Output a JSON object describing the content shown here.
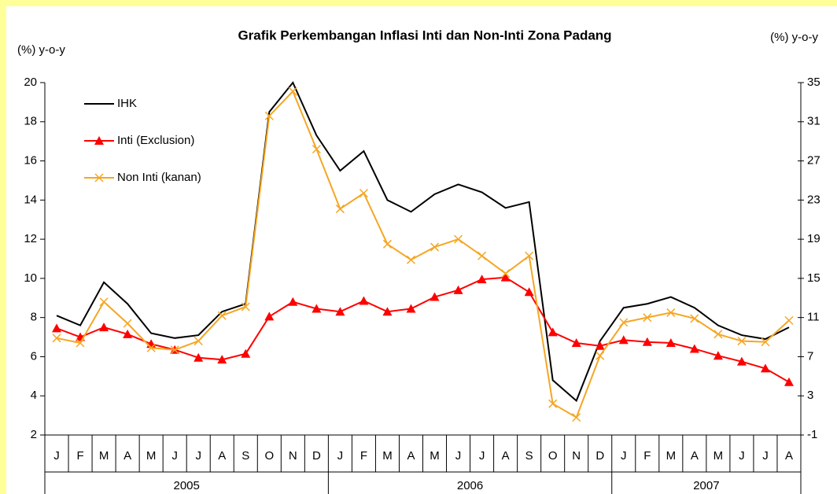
{
  "chart_data": {
    "type": "line",
    "title": "Grafik Perkembangan Inflasi Inti dan Non-Inti Zona Padang",
    "y_label": "(%) y-o-y",
    "y2_label": "(%) y-o-y",
    "x": [
      {
        "month": "J",
        "year": "2005"
      },
      {
        "month": "F",
        "year": "2005"
      },
      {
        "month": "M",
        "year": "2005"
      },
      {
        "month": "A",
        "year": "2005"
      },
      {
        "month": "M",
        "year": "2005"
      },
      {
        "month": "J",
        "year": "2005"
      },
      {
        "month": "J",
        "year": "2005"
      },
      {
        "month": "A",
        "year": "2005"
      },
      {
        "month": "S",
        "year": "2005"
      },
      {
        "month": "O",
        "year": "2005"
      },
      {
        "month": "N",
        "year": "2005"
      },
      {
        "month": "D",
        "year": "2005"
      },
      {
        "month": "J",
        "year": "2006"
      },
      {
        "month": "F",
        "year": "2006"
      },
      {
        "month": "M",
        "year": "2006"
      },
      {
        "month": "A",
        "year": "2006"
      },
      {
        "month": "M",
        "year": "2006"
      },
      {
        "month": "J",
        "year": "2006"
      },
      {
        "month": "J",
        "year": "2006"
      },
      {
        "month": "A",
        "year": "2006"
      },
      {
        "month": "S",
        "year": "2006"
      },
      {
        "month": "O",
        "year": "2006"
      },
      {
        "month": "N",
        "year": "2006"
      },
      {
        "month": "D",
        "year": "2006"
      },
      {
        "month": "J",
        "year": "2007"
      },
      {
        "month": "F",
        "year": "2007"
      },
      {
        "month": "M",
        "year": "2007"
      },
      {
        "month": "A",
        "year": "2007"
      },
      {
        "month": "M",
        "year": "2007"
      },
      {
        "month": "J",
        "year": "2007"
      },
      {
        "month": "J",
        "year": "2007"
      },
      {
        "month": "A",
        "year": "2007"
      }
    ],
    "series": [
      {
        "name": "IHK",
        "color": "#000000",
        "marker": "none",
        "values": [
          8.1,
          7.6,
          9.8,
          8.7,
          7.2,
          6.95,
          7.1,
          8.3,
          8.7,
          18.5,
          20,
          17.3,
          15.5,
          16.5,
          14,
          13.4,
          14.3,
          14.8,
          14.4,
          13.6,
          13.9,
          4.8,
          3.75,
          6.8,
          8.5,
          8.7,
          9.05,
          8.5,
          7.6,
          7.1,
          6.9,
          7.5
        ]
      },
      {
        "name": "Inti (Exclusion)",
        "color": "#ff0000",
        "marker": "triangle",
        "values": [
          7.45,
          7.0,
          7.5,
          7.15,
          6.65,
          6.35,
          5.95,
          5.85,
          6.15,
          8.05,
          8.8,
          8.45,
          8.3,
          8.85,
          8.3,
          8.45,
          9.05,
          9.4,
          9.95,
          10.05,
          9.3,
          7.25,
          6.7,
          6.55,
          6.85,
          6.75,
          6.7,
          6.4,
          6.05,
          5.75,
          5.4,
          4.7
        ]
      },
      {
        "name": "Non Inti (kanan)",
        "color": "#f5a623",
        "marker": "x",
        "axis": "y2",
        "values": [
          8.9,
          8.4,
          12.6,
          10.4,
          7.9,
          7.7,
          8.6,
          11.2,
          12.1,
          31.6,
          34.1,
          28.2,
          22.1,
          23.7,
          18.5,
          16.9,
          18.2,
          19,
          17.3,
          15.5,
          17.3,
          2.2,
          0.8,
          7.1,
          10.5,
          11,
          11.5,
          10.9,
          9.3,
          8.6,
          8.5,
          10.7
        ]
      }
    ],
    "ylim": [
      2,
      20
    ],
    "yticks": [
      2,
      4,
      6,
      8,
      10,
      12,
      14,
      16,
      18,
      20
    ],
    "y2lim": [
      -1,
      35
    ],
    "y2ticks": [
      -1,
      3,
      7,
      11,
      15,
      19,
      23,
      27,
      31,
      35
    ],
    "legend": "upper left"
  }
}
